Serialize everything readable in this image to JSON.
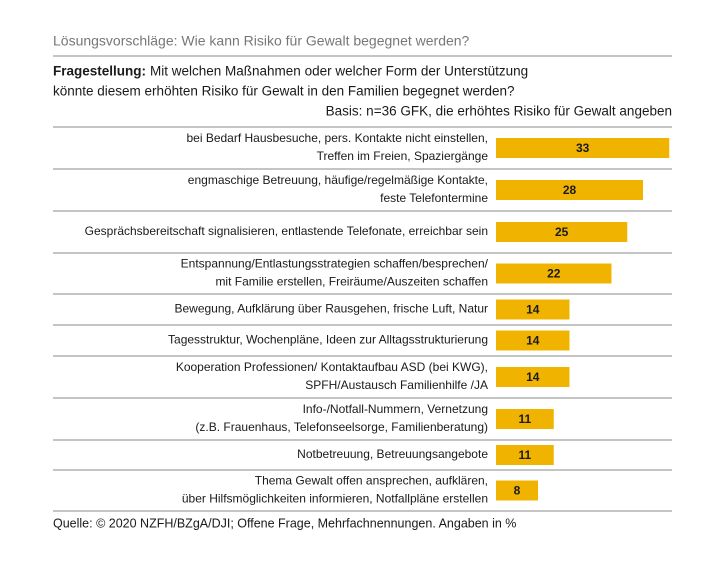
{
  "chart_data": {
    "type": "bar",
    "title": "Lösungsvorschläge: Wie kann Risiko für Gewalt begegnet werden?",
    "question_label": "Fragestellung:",
    "question_lines": [
      "Mit welchen Maßnahmen oder welcher Form der Unterstützung",
      "könnte diesem erhöhten Risiko für Gewalt in den Familien begegnet werden?"
    ],
    "basis": "Basis: n=36 GFK, die erhöhtes Risiko für Gewalt angeben",
    "categories": [
      [
        "bei Bedarf Hausbesuche, pers. Kontakte nicht einstellen,",
        "Treffen im Freien, Spaziergänge"
      ],
      [
        "engmaschige Betreuung, häufige/regelmäßige Kontakte,",
        "feste Telefontermine"
      ],
      [
        "Gesprächsbereitschaft signalisieren, entlastende Telefonate, erreichbar sein"
      ],
      [
        "Entspannung/Entlastungsstrategien schaffen/besprechen/",
        "mit Familie erstellen, Freiräume/Auszeiten schaffen"
      ],
      [
        "Bewegung, Aufklärung über Rausgehen, frische Luft, Natur"
      ],
      [
        "Tagesstruktur, Wochenpläne, Ideen zur Alltagsstrukturierung"
      ],
      [
        "Kooperation Professionen/ Kontaktaufbau ASD (bei KWG),",
        "SPFH/Austausch Familienhilfe /JA"
      ],
      [
        "Info-/Notfall-Nummern, Vernetzung",
        "(z.B. Frauenhaus, Telefonseelsorge, Familienberatung)"
      ],
      [
        "Notbetreuung, Betreuungsangebote"
      ],
      [
        "Thema Gewalt offen ansprechen, aufklären,",
        "über Hilfsmöglichkeiten informieren, Notfallpläne erstellen"
      ]
    ],
    "values": [
      33,
      28,
      25,
      22,
      14,
      14,
      14,
      11,
      11,
      8
    ],
    "color": "#f0b400",
    "source": "Quelle: © 2020 NZFH/BZgA/DJI; Offene Frage, Mehrfachnennungen. Angaben in %"
  }
}
